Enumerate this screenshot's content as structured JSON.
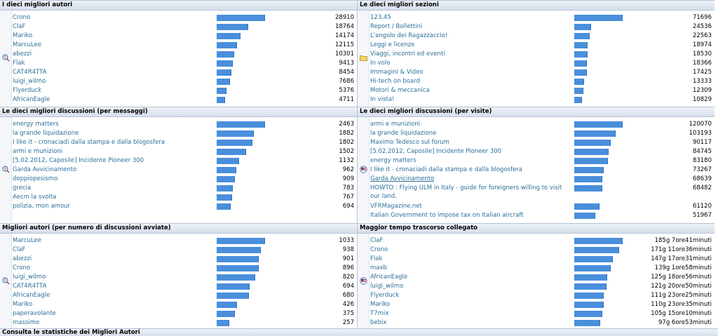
{
  "panels": [
    {
      "title": "I dieci migliori autori",
      "icon": "search-user-icon",
      "max": 28910,
      "rows": [
        [
          "Crono",
          "28910"
        ],
        [
          "ClaF",
          "18764"
        ],
        [
          "Mariko",
          "14174"
        ],
        [
          "MarcuLee",
          "12115"
        ],
        [
          "abezzi",
          "10301"
        ],
        [
          "Flak",
          "9413"
        ],
        [
          "CAT4R4TTA",
          "8454"
        ],
        [
          "luigi_wilmo",
          "7686"
        ],
        [
          "Flyerduck",
          "5376"
        ],
        [
          "AfricanEagle",
          "4711"
        ]
      ],
      "vals": [
        28910,
        18764,
        14174,
        12115,
        10301,
        9413,
        8454,
        7686,
        5376,
        4711
      ]
    },
    {
      "title": "Le dieci migliori sezioni",
      "icon": "folder-icon",
      "max": 71696,
      "rows": [
        [
          "123.45",
          "71696"
        ],
        [
          "Report / Bollettini",
          "24536"
        ],
        [
          "L'angolo dei Ragazzaccio!",
          "22563"
        ],
        [
          "Leggi e licenze",
          "18974"
        ],
        [
          "Viaggi, incontri ed eventi",
          "18530"
        ],
        [
          "In volo",
          "18366"
        ],
        [
          "Immagini & Video",
          "17425"
        ],
        [
          "Hi-tech on board",
          "13333"
        ],
        [
          "Motori & meccanica",
          "12309"
        ],
        [
          "In vista!",
          "10829"
        ]
      ],
      "vals": [
        71696,
        24536,
        22563,
        18974,
        18530,
        18366,
        17425,
        13333,
        12309,
        10829
      ]
    },
    {
      "title": "Le dieci migliori discussioni (per messaggi)",
      "icon": "search-discussion-icon",
      "max": 2463,
      "rows": [
        [
          "energy matters",
          "2463"
        ],
        [
          "la grande liquidazione",
          "1882"
        ],
        [
          "I like it - cronaciadi dalla stampa e dalla blogosfera",
          "1802"
        ],
        [
          "armi e munizioni",
          "1502"
        ],
        [
          "[5.02.2012, Caposile] Incidente Pioneer 300",
          "1132"
        ],
        [
          "Garda Avvicinamento",
          "962"
        ],
        [
          "doppiopesismo",
          "909"
        ],
        [
          "grecia",
          "783"
        ],
        [
          "Aecm la svolta",
          "767"
        ],
        [
          "polizia, mon amour",
          "694"
        ]
      ],
      "vals": [
        2463,
        1882,
        1802,
        1502,
        1132,
        962,
        909,
        783,
        767,
        694
      ]
    },
    {
      "title": "Le dieci migliori discussioni (per visite)",
      "icon": "flag-icon",
      "max": 120070,
      "rows": [
        [
          "armi e munizioni",
          "120070"
        ],
        [
          "la grande liquidazione",
          "103193"
        ],
        [
          "Maximo Tedesco sul forum",
          "90117"
        ],
        [
          "[5.02.2012, Caposile] Incidente Pioneer 300",
          "84745"
        ],
        [
          "energy matters",
          "83180"
        ],
        [
          "I like it - cronaciadi dalla stampa e dalla blogosfera",
          "73267"
        ],
        [
          "Garda Avvicinamento",
          "68639"
        ],
        [
          "HOWTO : Flying ULM in Italy - guide for foreigners willing to visit our land.",
          "68482"
        ],
        [
          "VFRMagazine.net",
          "61120"
        ],
        [
          "Italian Government to impose tax on Italian aircraft",
          "51967"
        ]
      ],
      "vals": [
        120070,
        103193,
        90117,
        84745,
        83180,
        73267,
        68639,
        68482,
        61120,
        51967
      ]
    },
    {
      "title": "Migliori autori (per numero di discussioni avviate)",
      "icon": "search-user-icon",
      "max": 1033,
      "rows": [
        [
          "MarcuLee",
          "1033"
        ],
        [
          "ClaF",
          "938"
        ],
        [
          "abezzi",
          "901"
        ],
        [
          "Crono",
          "896"
        ],
        [
          "luigi_wilmo",
          "820"
        ],
        [
          "CAT4R4TTA",
          "694"
        ],
        [
          "AfricanEagle",
          "680"
        ],
        [
          "Mariko",
          "426"
        ],
        [
          "paperavolante",
          "375"
        ],
        [
          "massimo",
          "257"
        ]
      ],
      "vals": [
        1033,
        938,
        901,
        896,
        820,
        694,
        680,
        426,
        375,
        257
      ]
    },
    {
      "title": "Maggior tempo trascorso collegato",
      "icon": "flag-icon",
      "max": 185.3,
      "rows": [
        [
          "ClaF",
          "185g 7ore41minuti"
        ],
        [
          "Crono",
          "171g 11ore36minuti"
        ],
        [
          "Flak",
          "147g 17ore31minuti"
        ],
        [
          "maxb",
          "139g 1ore58minuti"
        ],
        [
          "AfricanEagle",
          "125g 18ore56minuti"
        ],
        [
          "luigi_wilmo",
          "121g 20ore50minuti"
        ],
        [
          "Flyerduck",
          "111g 23ore25minuti"
        ],
        [
          "Mariko",
          "110g 23ore35minuti"
        ],
        [
          "T7mix",
          "105g 15ore10minuti"
        ],
        [
          "bebix",
          "97g 6ore53minuti"
        ]
      ],
      "vals": [
        185.3,
        171.5,
        147.7,
        139.1,
        125.8,
        121.9,
        112,
        111,
        105.6,
        97.3
      ]
    }
  ],
  "footer": "Consulta le statistiche dei Migliori Autori"
}
